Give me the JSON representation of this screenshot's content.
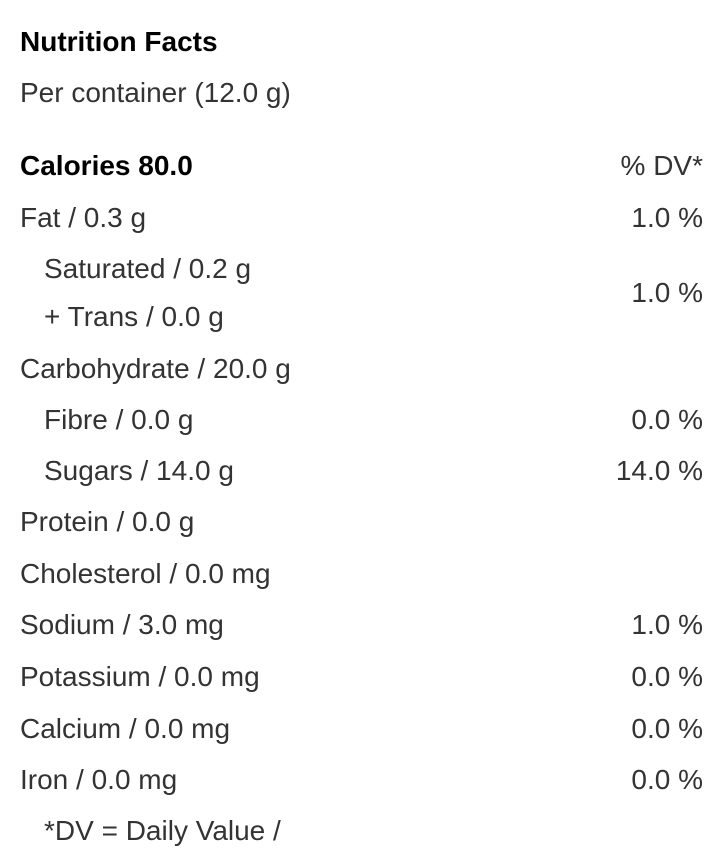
{
  "title": "Nutrition Facts",
  "serving": "Per container (12.0 g)",
  "calories": "Calories 80.0",
  "dv_header": "% DV*",
  "rows": [
    {
      "label": "Fat / 0.3 g",
      "dv": "1.0 %"
    },
    {
      "label": "Saturated / 0.2 g"
    },
    {
      "label": "+ Trans / 0.0 g",
      "dv": "1.0 %"
    },
    {
      "label": "Carbohydrate / 20.0 g"
    },
    {
      "label": "Fibre / 0.0 g",
      "dv": "0.0 %"
    },
    {
      "label": "Sugars / 14.0 g",
      "dv": "14.0 %"
    },
    {
      "label": "Protein / 0.0 g"
    },
    {
      "label": "Cholesterol / 0.0 mg"
    },
    {
      "label": "Sodium / 3.0 mg",
      "dv": "1.0 %"
    },
    {
      "label": "Potassium / 0.0 mg",
      "dv": "0.0 %"
    },
    {
      "label": "Calcium / 0.0 mg",
      "dv": "0.0 %"
    },
    {
      "label": "Iron / 0.0 mg",
      "dv": "0.0 %"
    }
  ],
  "footnote": "*DV = Daily Value /"
}
